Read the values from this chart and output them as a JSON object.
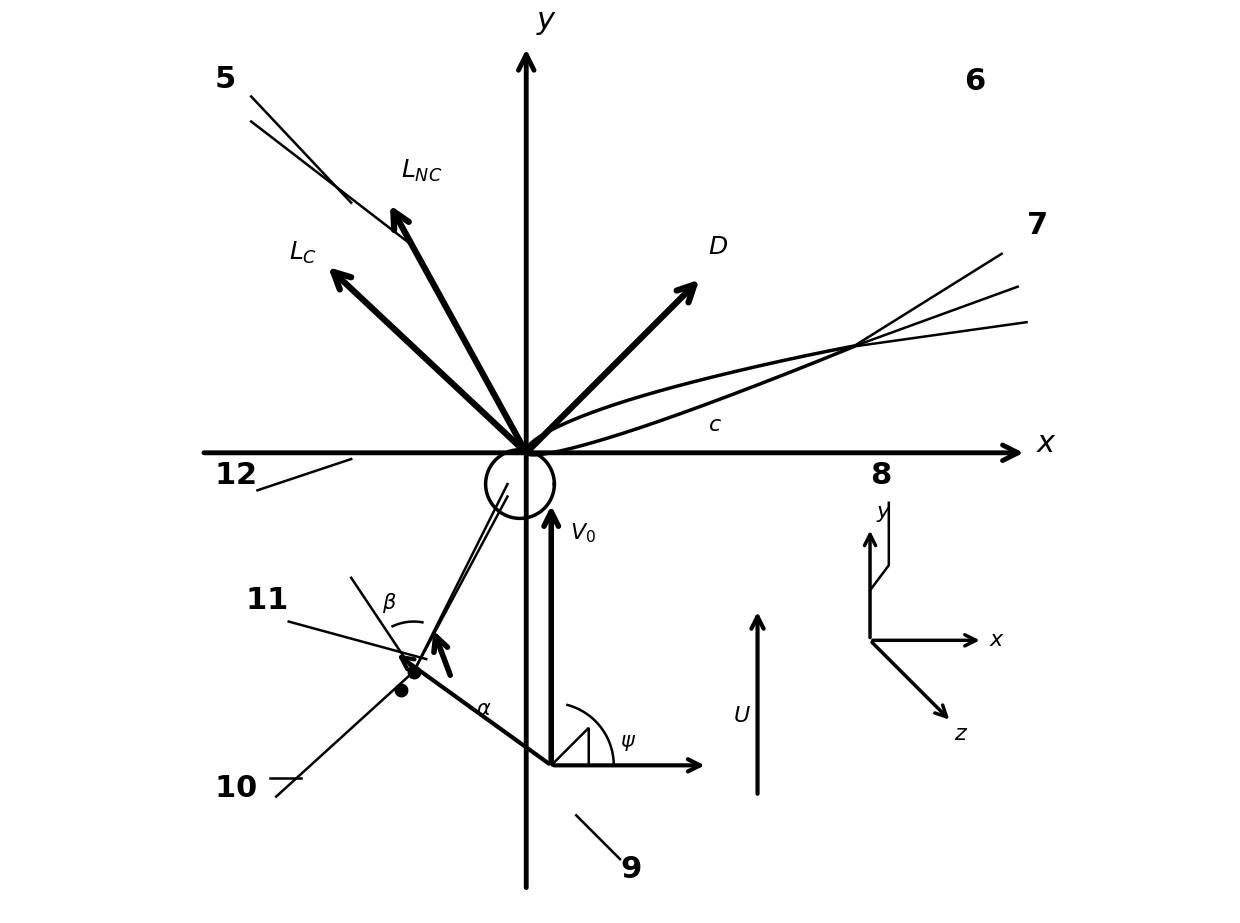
{
  "bg_color": "#ffffff",
  "fig_width": 12.4,
  "fig_height": 9.23,
  "dpi": 100
}
